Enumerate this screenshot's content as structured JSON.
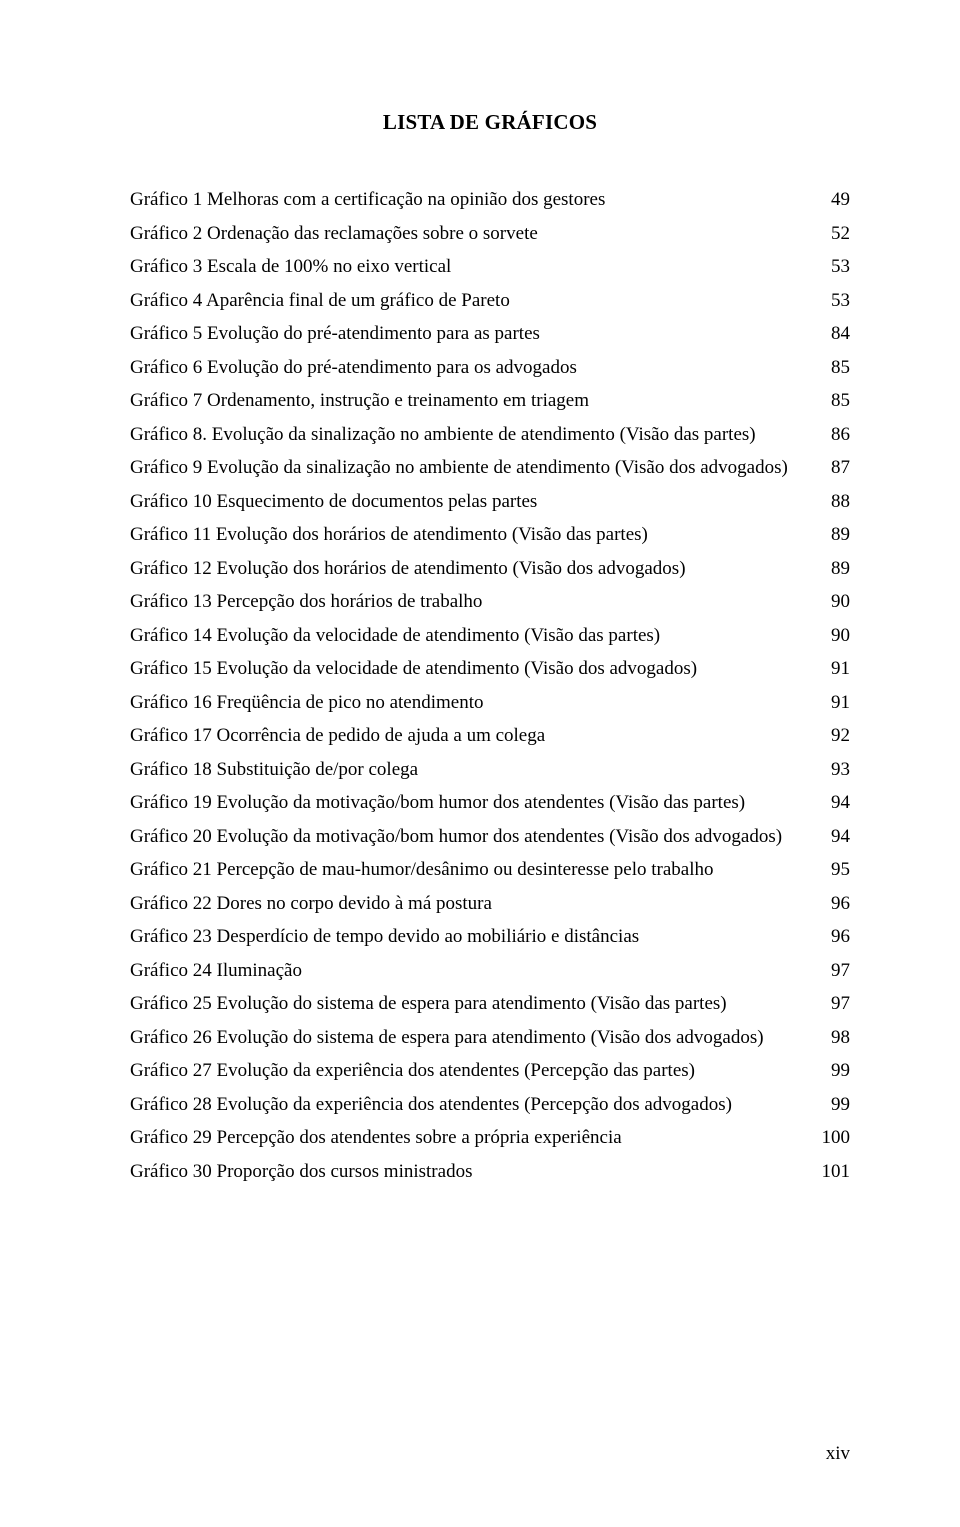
{
  "title": "LISTA DE GRÁFICOS",
  "footer": "xiv",
  "entries": [
    {
      "label": "Gráfico 1 Melhoras com a certificação na opinião dos gestores",
      "page": "49"
    },
    {
      "label": "Gráfico 2 Ordenação das reclamações sobre o sorvete",
      "page": "52"
    },
    {
      "label": "Gráfico 3 Escala de 100% no eixo vertical",
      "page": "53"
    },
    {
      "label": "Gráfico 4 Aparência final de um gráfico de Pareto",
      "page": "53"
    },
    {
      "label": "Gráfico 5 Evolução do pré-atendimento para as partes",
      "page": "84"
    },
    {
      "label": "Gráfico 6 Evolução do pré-atendimento para os advogados",
      "page": "85"
    },
    {
      "label": "Gráfico 7 Ordenamento, instrução e treinamento em triagem",
      "page": "85"
    },
    {
      "label": "Gráfico 8. Evolução da sinalização no ambiente de atendimento (Visão das partes)",
      "page": "86"
    },
    {
      "label": "Gráfico 9 Evolução da sinalização no ambiente de atendimento (Visão dos advogados)",
      "page": "87"
    },
    {
      "label": "Gráfico 10 Esquecimento de documentos pelas partes",
      "page": "88"
    },
    {
      "label": "Gráfico 11 Evolução dos horários de atendimento (Visão das partes)",
      "page": "89"
    },
    {
      "label": "Gráfico 12 Evolução dos horários de atendimento (Visão dos advogados)",
      "page": "89"
    },
    {
      "label": "Gráfico 13 Percepção dos horários de trabalho",
      "page": "90"
    },
    {
      "label": "Gráfico 14 Evolução da velocidade de atendimento (Visão das partes)",
      "page": "90"
    },
    {
      "label": "Gráfico 15 Evolução da velocidade de atendimento (Visão dos advogados)",
      "page": "91"
    },
    {
      "label": "Gráfico 16 Freqüência de pico no atendimento",
      "page": "91"
    },
    {
      "label": "Gráfico 17 Ocorrência de pedido de ajuda a um colega",
      "page": "92"
    },
    {
      "label": "Gráfico 18 Substituição de/por colega",
      "page": "93"
    },
    {
      "label": "Gráfico 19 Evolução da motivação/bom humor dos atendentes (Visão das partes)",
      "page": "94"
    },
    {
      "label": "Gráfico 20 Evolução da motivação/bom humor dos atendentes (Visão dos advogados)",
      "page": "94"
    },
    {
      "label": "Gráfico 21 Percepção de mau-humor/desânimo ou desinteresse pelo trabalho",
      "page": "95"
    },
    {
      "label": "Gráfico 22 Dores no corpo devido à má postura",
      "page": "96"
    },
    {
      "label": "Gráfico 23 Desperdício de tempo devido ao mobiliário e distâncias",
      "page": "96"
    },
    {
      "label": "Gráfico 24 Iluminação",
      "page": "97"
    },
    {
      "label": "Gráfico 25 Evolução do sistema de espera para atendimento (Visão das partes)",
      "page": "97"
    },
    {
      "label": "Gráfico 26 Evolução do sistema de espera para atendimento (Visão dos advogados)",
      "page": "98"
    },
    {
      "label": "Gráfico 27 Evolução da experiência dos atendentes (Percepção das partes)",
      "page": "99"
    },
    {
      "label": "Gráfico 28 Evolução da experiência dos atendentes (Percepção dos advogados)",
      "page": "99"
    },
    {
      "label": "Gráfico 29 Percepção dos atendentes sobre a própria experiência",
      "page": "100"
    },
    {
      "label": "Gráfico 30 Proporção dos cursos ministrados",
      "page": "101"
    }
  ]
}
